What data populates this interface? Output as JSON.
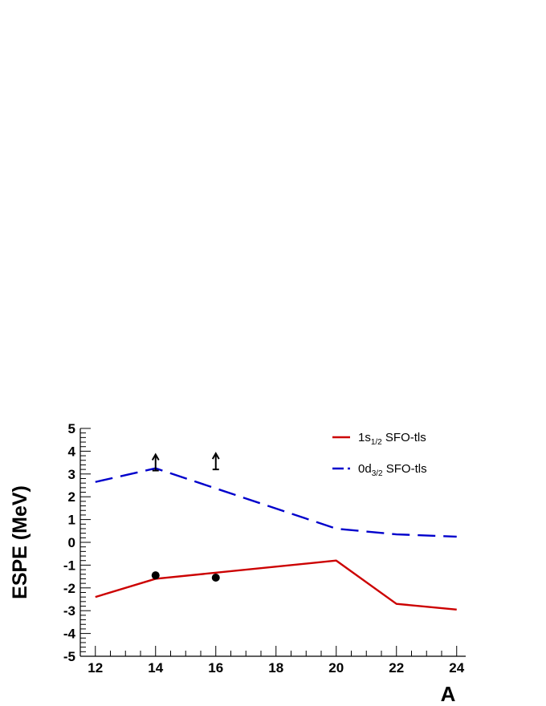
{
  "chart_data": {
    "type": "line",
    "xlabel": "A",
    "ylabel": "ESPE (MeV)",
    "xlim": [
      11.5,
      24.3
    ],
    "ylim": [
      -5,
      5
    ],
    "x_ticks": [
      12,
      14,
      16,
      18,
      20,
      22,
      24
    ],
    "y_ticks": [
      -5,
      -4,
      -3,
      -2,
      -1,
      0,
      1,
      2,
      3,
      4,
      5
    ],
    "series": [
      {
        "name": "1s1/2 SFO-tls",
        "legend_main": "1s",
        "legend_sub": "1/2",
        "legend_rest": " SFO-tls",
        "color": "#cc0000",
        "style": "solid",
        "x": [
          12,
          14,
          20,
          22,
          24
        ],
        "y": [
          -2.4,
          -1.6,
          -0.8,
          -2.7,
          -2.95
        ]
      },
      {
        "name": "0d3/2 SFO-tls",
        "legend_main": "0d",
        "legend_sub": "3/2",
        "legend_rest": " SFO-tls",
        "color": "#0000cc",
        "style": "dashed",
        "x": [
          12,
          14,
          20,
          22,
          24
        ],
        "y": [
          2.65,
          3.25,
          0.6,
          0.35,
          0.25
        ]
      }
    ],
    "data_points": {
      "type": "scatter",
      "marker": "filled-circle",
      "color": "#000000",
      "x": [
        14,
        16
      ],
      "y": [
        -1.45,
        -1.55
      ]
    },
    "lower_limits": {
      "marker": "arrow-up",
      "color": "#000000",
      "x": [
        14,
        16
      ],
      "y": [
        3.15,
        3.2
      ]
    },
    "legend_position": "top-right",
    "grid": false
  }
}
